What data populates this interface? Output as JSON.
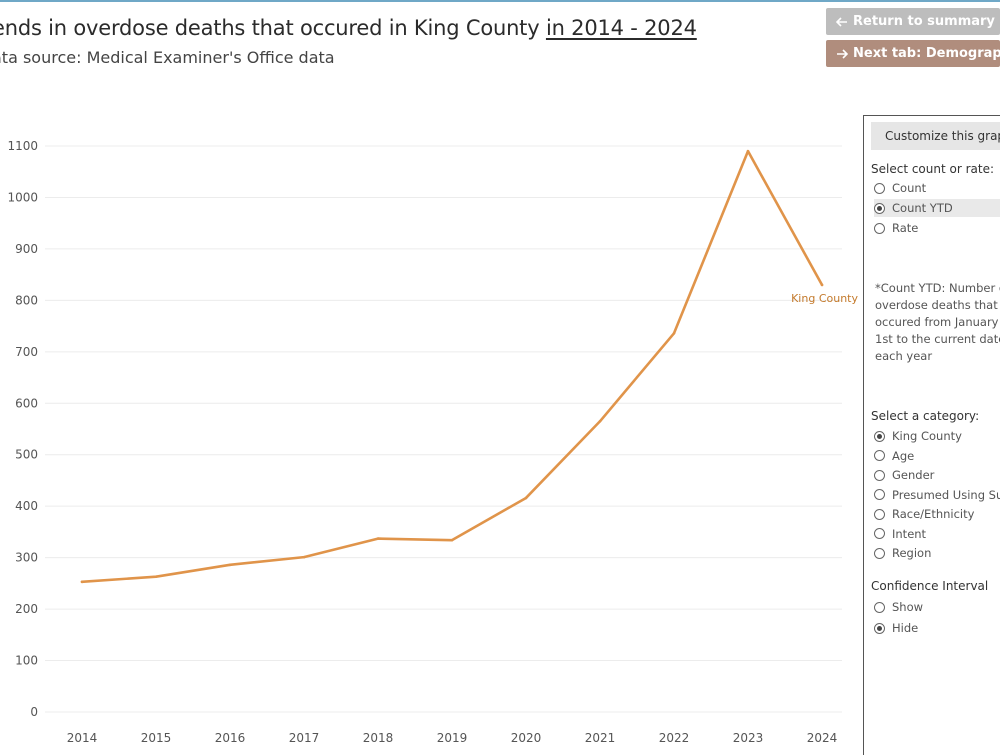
{
  "header": {
    "title_main": "ends in overdose deaths that occured in King County ",
    "title_range": "in 2014 - 2024",
    "subtitle": "ata source: Medical Examiner's Office data"
  },
  "buttons": {
    "return_label": "Return to summary",
    "next_label": "Next tab: Demographics",
    "return_icon": "arrow-left-icon",
    "next_icon": "arrow-right-icon"
  },
  "panel": {
    "header": "Customize this graph",
    "count_rate_label": "Select count or rate:",
    "count_rate_options": [
      {
        "label": "Count",
        "checked": false
      },
      {
        "label": "Count YTD",
        "checked": true
      },
      {
        "label": "Rate",
        "checked": false
      }
    ],
    "note_lines": [
      "*Count YTD: Number of",
      "overdose deaths that",
      "occured from January",
      "1st to the current date",
      "each year"
    ],
    "category_label": "Select a category:",
    "category_options": [
      {
        "label": "King County",
        "checked": true
      },
      {
        "label": "Age",
        "checked": false
      },
      {
        "label": "Gender",
        "checked": false
      },
      {
        "label": "Presumed Using Substance",
        "checked": false
      },
      {
        "label": "Race/Ethnicity",
        "checked": false
      },
      {
        "label": "Intent",
        "checked": false
      },
      {
        "label": "Region",
        "checked": false
      }
    ],
    "ci_label": "Confidence Interval",
    "ci_options": [
      {
        "label": "Show",
        "checked": false
      },
      {
        "label": "Hide",
        "checked": true
      }
    ]
  },
  "chart_data": {
    "type": "line",
    "title": "",
    "xlabel": "",
    "ylabel": "",
    "x": [
      "2014",
      "2015",
      "2016",
      "2017",
      "2018",
      "2019",
      "2020",
      "2021",
      "2022",
      "2023",
      "2024"
    ],
    "series": [
      {
        "name": "King County",
        "values": [
          253,
          263,
          286,
          301,
          337,
          334,
          416,
          565,
          736,
          1090,
          830
        ],
        "color": "#e0944a"
      }
    ],
    "yticks": [
      0,
      100,
      200,
      300,
      400,
      500,
      600,
      700,
      800,
      900,
      1000,
      1100
    ],
    "ylim": [
      0,
      1100
    ],
    "grid": true,
    "colors": {
      "line": "#e0944a",
      "label": "#c47a2c",
      "grid": "#ececec"
    }
  }
}
